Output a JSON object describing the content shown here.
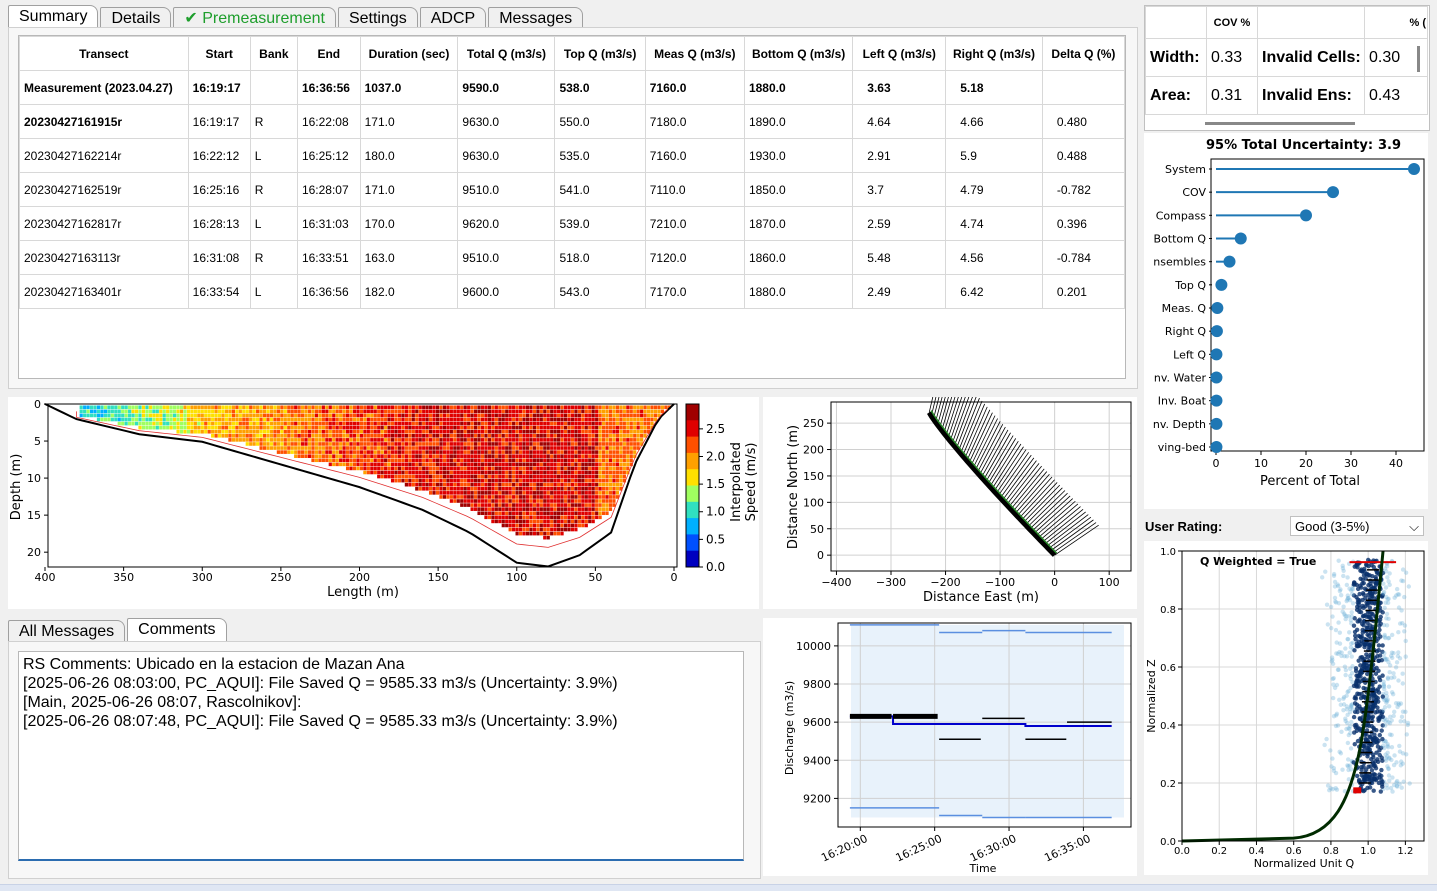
{
  "tabs": [
    {
      "label": "Summary",
      "active": true
    },
    {
      "label": "Details"
    },
    {
      "label": "Premeasurement",
      "check": true
    },
    {
      "label": "Settings"
    },
    {
      "label": "ADCP"
    },
    {
      "label": "Messages"
    }
  ],
  "summary_table": {
    "headers": [
      "Transect",
      "Start",
      "Bank",
      "End",
      "Duration (sec)",
      "Total Q (m3/s)",
      "Top Q (m3/s)",
      "Meas Q (m3/s)",
      "Bottom Q (m3/s)",
      "Left Q (m3/s)",
      "Right Q (m3/s)",
      "Delta Q (%)"
    ],
    "rows": [
      [
        "Measurement (2023.04.27)",
        "16:19:17",
        "",
        "16:36:56",
        "1037.0",
        "9590.0",
        "538.0",
        "7160.0",
        "1880.0",
        "3.63",
        "5.18",
        ""
      ],
      [
        "20230427161915r",
        "16:19:17",
        "R",
        "16:22:08",
        "171.0",
        "9630.0",
        "550.0",
        "7180.0",
        "1890.0",
        "4.64",
        "4.66",
        "0.480"
      ],
      [
        "20230427162214r",
        "16:22:12",
        "L",
        "16:25:12",
        "180.0",
        "9630.0",
        "535.0",
        "7160.0",
        "1930.0",
        "2.91",
        "5.9",
        "0.488"
      ],
      [
        "20230427162519r",
        "16:25:16",
        "R",
        "16:28:07",
        "171.0",
        "9510.0",
        "541.0",
        "7110.0",
        "1850.0",
        "3.7",
        "4.79",
        "-0.782"
      ],
      [
        "20230427162817r",
        "16:28:13",
        "L",
        "16:31:03",
        "170.0",
        "9620.0",
        "539.0",
        "7210.0",
        "1870.0",
        "2.59",
        "4.74",
        "0.396"
      ],
      [
        "20230427163113r",
        "16:31:08",
        "R",
        "16:33:51",
        "163.0",
        "9510.0",
        "518.0",
        "7120.0",
        "1860.0",
        "5.48",
        "4.56",
        "-0.784"
      ],
      [
        "20230427163401r",
        "16:33:54",
        "L",
        "16:36:56",
        "182.0",
        "9600.0",
        "543.0",
        "7170.0",
        "1880.0",
        "2.49",
        "6.42",
        "0.201"
      ]
    ]
  },
  "uncertainty_table": {
    "header_cov": "COV %",
    "header_pct": "% (",
    "width_label": "Width:",
    "width_val": "0.33",
    "invalid_cells_label": "Invalid Cells:",
    "invalid_cells_val": "0.30",
    "area_label": "Area:",
    "area_val": "0.31",
    "invalid_ens_label": "Invalid Ens:",
    "invalid_ens_val": "0.43"
  },
  "uncertainty_chart": {
    "title_label": "95% Total Uncertainty:",
    "title_value": "3.9",
    "xlabel": "Percent of Total",
    "xticks": [
      "0",
      "10",
      "20",
      "30",
      "40"
    ],
    "categories": [
      "System",
      "COV",
      "Compass",
      "Bottom Q",
      "nsembles",
      "Top Q",
      "Meas. Q",
      "Right Q",
      "Left Q",
      "nv. Water",
      "Inv. Boat",
      "nv. Depth",
      "ving-bed"
    ],
    "values": [
      44,
      26,
      20,
      5.5,
      3,
      1.2,
      0.3,
      0.2,
      0.1,
      0.1,
      0.1,
      0.1,
      0.1
    ],
    "color": "#1f77b4"
  },
  "user_rating": {
    "label": "User Rating:",
    "value": "Good (3-5%)"
  },
  "contour_chart": {
    "ylabel": "Depth (m)",
    "xlabel": "Length (m)",
    "xticks": [
      "400",
      "350",
      "300",
      "250",
      "200",
      "150",
      "100",
      "50",
      "0"
    ],
    "yticks": [
      "0",
      "5",
      "10",
      "15",
      "20"
    ],
    "colorbar_label": "Interpolated\nSpeed (m/s)",
    "colorbar_ticks": [
      "0.0",
      "0.5",
      "1.0",
      "1.5",
      "2.0",
      "2.5"
    ]
  },
  "shiptrack_chart": {
    "xlabel": "Distance East (m)",
    "ylabel": "Distance North (m)",
    "xticks": [
      "−400",
      "−300",
      "−200",
      "−100",
      "0",
      "100"
    ],
    "yticks": [
      "0",
      "50",
      "100",
      "150",
      "200",
      "250"
    ]
  },
  "messages_tabs": [
    {
      "label": "All Messages"
    },
    {
      "label": "Comments",
      "active": true
    }
  ],
  "comments": [
    "RS Comments: Ubicado en la estacion de Mazan Ana",
    "[2025-06-26 08:03:00, PC_AQUI]: File Saved Q =  9585.33 m3/s (Uncertainty:  3.9%)",
    "[Main, 2025-06-26 08:07, Rascolnikov]:",
    "[2025-06-26 08:07:48, PC_AQUI]: File Saved Q =  9585.33 m3/s (Uncertainty:  3.9%)"
  ],
  "discharge_chart": {
    "ylabel": "Discharge (m3/s)",
    "xlabel": "Time",
    "yticks": [
      "9200",
      "9400",
      "9600",
      "9800",
      "10000"
    ],
    "xticks": [
      "16:20:00",
      "16:25:00",
      "16:30:00",
      "16:35:00"
    ],
    "transect_q": [
      9630,
      9630,
      9510,
      9620,
      9510,
      9600
    ],
    "mean_q": [
      9630,
      9590,
      9590,
      9590,
      9580
    ],
    "upper": [
      10110,
      10070,
      10080,
      10070
    ],
    "lower": [
      9150,
      9110,
      9100,
      9100
    ]
  },
  "extrap_chart": {
    "label": "Q Weighted = True",
    "xlabel": "Normalized Unit Q",
    "ylabel": "Normalized Z",
    "xticks": [
      "0.0",
      "0.2",
      "0.4",
      "0.6",
      "0.8",
      "1.0",
      "1.2"
    ],
    "yticks": [
      "0.0",
      "0.2",
      "0.4",
      "0.6",
      "0.8",
      "1.0"
    ]
  }
}
